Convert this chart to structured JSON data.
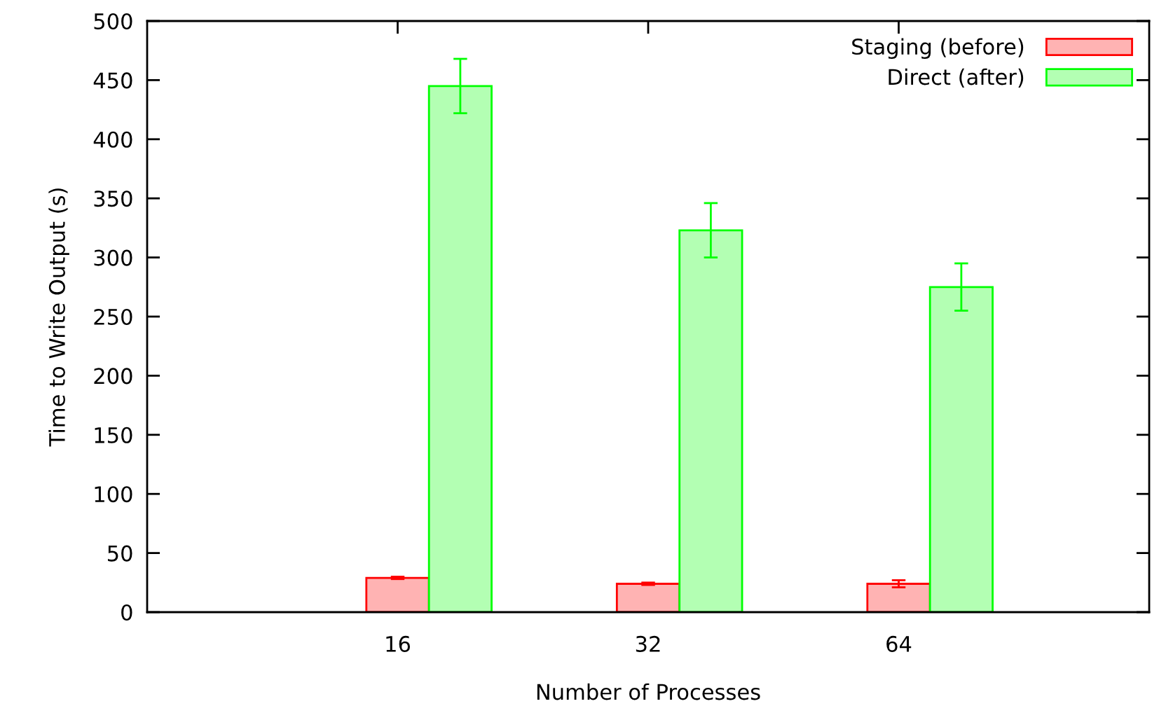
{
  "chart_data": {
    "type": "bar",
    "xlabel": "Number of Processes",
    "ylabel": "Time to Write Output (s)",
    "categories": [
      "16",
      "32",
      "64"
    ],
    "series": [
      {
        "name": "Staging (before)",
        "color": "#ffb3b3",
        "values": [
          29,
          24,
          24
        ],
        "errors": [
          1,
          1,
          3
        ]
      },
      {
        "name": "Direct (after)",
        "color": "#b3ffb3",
        "values": [
          445,
          323,
          275
        ],
        "errors": [
          23,
          23,
          20
        ]
      }
    ],
    "ylim": [
      0,
      500
    ],
    "yticks": [
      0,
      50,
      100,
      150,
      200,
      250,
      300,
      350,
      400,
      450,
      500
    ],
    "legend": "top right",
    "grid": false
  }
}
